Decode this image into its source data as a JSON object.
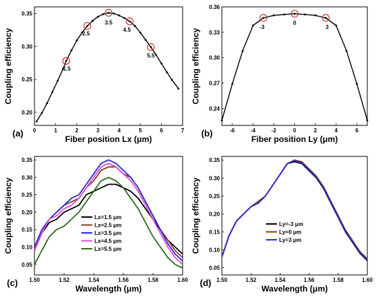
{
  "chart_data": [
    {
      "panel": "(a)",
      "type": "line",
      "xlabel": "Fiber position Lx (μm)",
      "ylabel": "Coupling efficiency",
      "xlim": [
        0,
        7
      ],
      "ylim": [
        0.18,
        0.36
      ],
      "xticks": [
        "0",
        "1",
        "2",
        "3",
        "4",
        "5",
        "6",
        "7"
      ],
      "yticks": [
        "0.20",
        "0.25",
        "0.30",
        "0.35"
      ],
      "series": [
        {
          "color": "#000000",
          "marker": "dot",
          "x": [
            0.1,
            0.35,
            0.6,
            0.85,
            1.1,
            1.35,
            1.5,
            1.75,
            2.0,
            2.25,
            2.5,
            2.75,
            3.0,
            3.25,
            3.5,
            3.75,
            4.0,
            4.25,
            4.5,
            4.75,
            5.0,
            5.25,
            5.5,
            5.75,
            6.0,
            6.25,
            6.5,
            6.8
          ],
          "y": [
            0.186,
            0.199,
            0.214,
            0.231,
            0.248,
            0.266,
            0.278,
            0.294,
            0.309,
            0.321,
            0.331,
            0.339,
            0.345,
            0.349,
            0.351,
            0.35,
            0.347,
            0.343,
            0.338,
            0.331,
            0.321,
            0.31,
            0.299,
            0.287,
            0.274,
            0.261,
            0.249,
            0.236
          ]
        }
      ],
      "highlights": [
        {
          "x": 1.5,
          "y": 0.278,
          "label": "1.5"
        },
        {
          "x": 2.5,
          "y": 0.331,
          "label": "2.5"
        },
        {
          "x": 3.5,
          "y": 0.351,
          "label": "3.5"
        },
        {
          "x": 4.5,
          "y": 0.338,
          "label": "4.5"
        },
        {
          "x": 5.5,
          "y": 0.299,
          "label": "5.5"
        }
      ]
    },
    {
      "panel": "(b)",
      "type": "line",
      "xlabel": "Fiber position Ly (μm)",
      "ylabel": "Coupling efficiency",
      "xlim": [
        -7,
        7
      ],
      "ylim": [
        0.22,
        0.36
      ],
      "xticks": [
        "-6",
        "-4",
        "-2",
        "0",
        "2",
        "4",
        "6"
      ],
      "yticks": [
        "0.24",
        "0.27",
        "0.30",
        "0.33",
        "0.36"
      ],
      "series": [
        {
          "color": "#000000",
          "marker": "dot",
          "x": [
            -7,
            -6,
            -5,
            -4,
            -3,
            -2,
            -1,
            0,
            1,
            2,
            3,
            4,
            5,
            6,
            7
          ],
          "y": [
            0.226,
            0.269,
            0.308,
            0.338,
            0.347,
            0.35,
            0.351,
            0.352,
            0.351,
            0.35,
            0.347,
            0.338,
            0.308,
            0.269,
            0.226
          ]
        }
      ],
      "highlights": [
        {
          "x": -3,
          "y": 0.347,
          "label": "-3"
        },
        {
          "x": 0,
          "y": 0.352,
          "label": "0"
        },
        {
          "x": 3,
          "y": 0.347,
          "label": "3"
        }
      ]
    },
    {
      "panel": "(c)",
      "type": "line",
      "xlabel": "Wavelength (μm)",
      "ylabel": "Coupling efficiency",
      "xlim": [
        1.5,
        1.6
      ],
      "ylim": [
        0.02,
        0.36
      ],
      "xticks": [
        "1.50",
        "1.52",
        "1.54",
        "1.56",
        "1.58",
        "1.60"
      ],
      "yticks": [
        "0.05",
        "0.10",
        "0.15",
        "0.20",
        "0.25",
        "0.30",
        "0.35"
      ],
      "x": [
        1.5,
        1.505,
        1.51,
        1.515,
        1.52,
        1.525,
        1.53,
        1.535,
        1.54,
        1.545,
        1.55,
        1.555,
        1.56,
        1.565,
        1.57,
        1.575,
        1.58,
        1.585,
        1.59,
        1.595,
        1.6
      ],
      "series": [
        {
          "name": "Lx=1.5 μm",
          "color": "#000000",
          "values": [
            0.09,
            0.14,
            0.17,
            0.18,
            0.2,
            0.21,
            0.22,
            0.25,
            0.26,
            0.27,
            0.28,
            0.28,
            0.27,
            0.26,
            0.24,
            0.21,
            0.18,
            0.15,
            0.12,
            0.1,
            0.08
          ]
        },
        {
          "name": "Lx=2.5 μm",
          "color": "#8b3a1a",
          "values": [
            0.1,
            0.14,
            0.18,
            0.2,
            0.22,
            0.23,
            0.24,
            0.27,
            0.29,
            0.32,
            0.33,
            0.33,
            0.31,
            0.3,
            0.27,
            0.23,
            0.19,
            0.15,
            0.12,
            0.09,
            0.07
          ]
        },
        {
          "name": "Lx=3.5 μm",
          "color": "#2a2ad8",
          "values": [
            0.1,
            0.15,
            0.18,
            0.2,
            0.22,
            0.24,
            0.25,
            0.28,
            0.31,
            0.34,
            0.35,
            0.34,
            0.32,
            0.3,
            0.27,
            0.23,
            0.19,
            0.15,
            0.11,
            0.08,
            0.06
          ]
        },
        {
          "name": "Lx=4.5 μm",
          "color": "#d84fd8",
          "values": [
            0.09,
            0.14,
            0.18,
            0.19,
            0.21,
            0.22,
            0.24,
            0.27,
            0.3,
            0.33,
            0.34,
            0.33,
            0.31,
            0.29,
            0.26,
            0.22,
            0.18,
            0.14,
            0.1,
            0.07,
            0.05
          ]
        },
        {
          "name": "Lx=5.5 μm",
          "color": "#2e6b1a",
          "values": [
            0.05,
            0.09,
            0.13,
            0.15,
            0.16,
            0.18,
            0.2,
            0.23,
            0.26,
            0.29,
            0.3,
            0.29,
            0.27,
            0.24,
            0.21,
            0.17,
            0.13,
            0.1,
            0.07,
            0.05,
            0.04
          ]
        }
      ]
    },
    {
      "panel": "(d)",
      "type": "line",
      "xlabel": "Wavelength (μm)",
      "ylabel": "Coupling efficiency",
      "xlim": [
        1.5,
        1.6
      ],
      "ylim": [
        0.03,
        0.36
      ],
      "xticks": [
        "1.50",
        "1.52",
        "1.54",
        "1.56",
        "1.58",
        "1.60"
      ],
      "yticks": [
        "0.05",
        "0.10",
        "0.15",
        "0.20",
        "0.25",
        "0.30",
        "0.35"
      ],
      "x": [
        1.5,
        1.505,
        1.51,
        1.515,
        1.52,
        1.525,
        1.53,
        1.535,
        1.54,
        1.545,
        1.55,
        1.555,
        1.56,
        1.565,
        1.57,
        1.575,
        1.58,
        1.585,
        1.59,
        1.595,
        1.6
      ],
      "series": [
        {
          "name": "Ly=-3 μm",
          "color": "#000000",
          "values": [
            0.08,
            0.14,
            0.18,
            0.2,
            0.22,
            0.23,
            0.25,
            0.28,
            0.31,
            0.34,
            0.345,
            0.34,
            0.32,
            0.3,
            0.27,
            0.23,
            0.19,
            0.15,
            0.12,
            0.09,
            0.07
          ]
        },
        {
          "name": "Ly=0 μm",
          "color": "#8b3a1a",
          "values": [
            0.08,
            0.14,
            0.18,
            0.2,
            0.22,
            0.235,
            0.25,
            0.28,
            0.31,
            0.34,
            0.35,
            0.345,
            0.325,
            0.305,
            0.275,
            0.235,
            0.195,
            0.155,
            0.125,
            0.095,
            0.075
          ]
        },
        {
          "name": "Ly=3 μm",
          "color": "#2a2ad8",
          "values": [
            0.08,
            0.14,
            0.18,
            0.2,
            0.22,
            0.23,
            0.25,
            0.28,
            0.31,
            0.34,
            0.348,
            0.342,
            0.322,
            0.302,
            0.272,
            0.232,
            0.192,
            0.152,
            0.122,
            0.092,
            0.072
          ]
        }
      ]
    }
  ]
}
